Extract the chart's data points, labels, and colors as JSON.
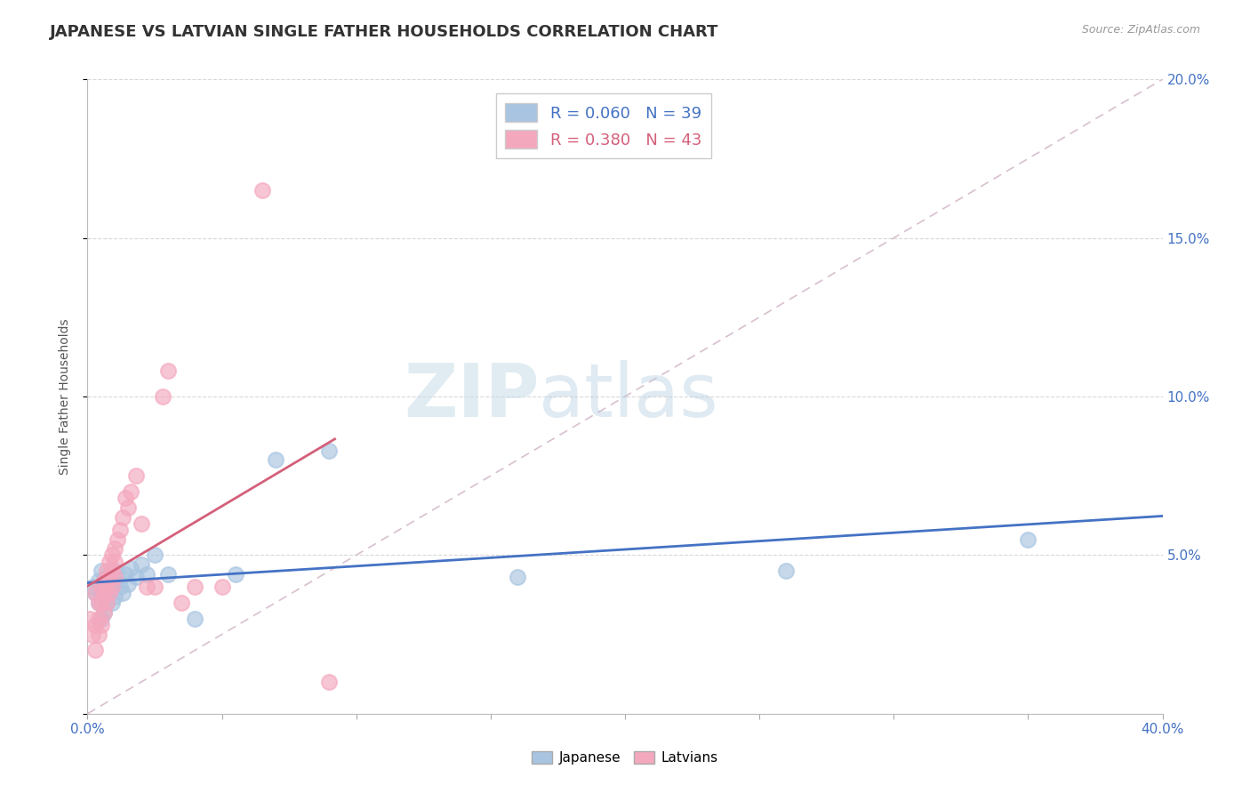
{
  "title": "JAPANESE VS LATVIAN SINGLE FATHER HOUSEHOLDS CORRELATION CHART",
  "source_text": "Source: ZipAtlas.com",
  "ylabel": "Single Father Households",
  "xlim": [
    0.0,
    0.4
  ],
  "ylim": [
    0.0,
    0.2
  ],
  "xtick_positions": [
    0.0,
    0.05,
    0.1,
    0.15,
    0.2,
    0.25,
    0.3,
    0.35,
    0.4
  ],
  "xtick_labels": [
    "0.0%",
    "",
    "",
    "",
    "",
    "",
    "",
    "",
    "40.0%"
  ],
  "ytick_positions": [
    0.0,
    0.05,
    0.1,
    0.15,
    0.2
  ],
  "ytick_labels_right": [
    "",
    "5.0%",
    "10.0%",
    "15.0%",
    "20.0%"
  ],
  "watermark_zip": "ZIP",
  "watermark_atlas": "atlas",
  "legend_japanese_R": "R = 0.060",
  "legend_japanese_N": "N = 39",
  "legend_latvian_R": "R = 0.380",
  "legend_latvian_N": "N = 43",
  "japanese_color": "#a8c4e0",
  "latvian_color": "#f4a8be",
  "japanese_line_color": "#4472c4",
  "latvian_line_color": "#d4607a",
  "diagonal_line_color": "#d8c0d0",
  "title_fontsize": 13,
  "axis_label_fontsize": 10,
  "tick_fontsize": 11,
  "background_color": "#ffffff",
  "grid_color": "#d8d8d8",
  "japanese_x": [
    0.002,
    0.003,
    0.004,
    0.004,
    0.005,
    0.005,
    0.005,
    0.006,
    0.006,
    0.006,
    0.007,
    0.007,
    0.007,
    0.008,
    0.008,
    0.009,
    0.009,
    0.009,
    0.01,
    0.01,
    0.01,
    0.011,
    0.012,
    0.013,
    0.014,
    0.015,
    0.016,
    0.018,
    0.02,
    0.022,
    0.025,
    0.03,
    0.04,
    0.055,
    0.07,
    0.09,
    0.16,
    0.26,
    0.35
  ],
  "japanese_y": [
    0.04,
    0.038,
    0.042,
    0.035,
    0.045,
    0.038,
    0.03,
    0.042,
    0.038,
    0.032,
    0.043,
    0.04,
    0.035,
    0.044,
    0.038,
    0.042,
    0.04,
    0.035,
    0.045,
    0.042,
    0.037,
    0.043,
    0.04,
    0.038,
    0.044,
    0.041,
    0.046,
    0.043,
    0.047,
    0.044,
    0.05,
    0.044,
    0.03,
    0.044,
    0.08,
    0.083,
    0.043,
    0.045,
    0.055
  ],
  "latvian_x": [
    0.001,
    0.002,
    0.003,
    0.003,
    0.003,
    0.004,
    0.004,
    0.004,
    0.005,
    0.005,
    0.005,
    0.006,
    0.006,
    0.006,
    0.007,
    0.007,
    0.007,
    0.008,
    0.008,
    0.008,
    0.009,
    0.009,
    0.009,
    0.01,
    0.01,
    0.01,
    0.011,
    0.012,
    0.013,
    0.014,
    0.015,
    0.016,
    0.018,
    0.02,
    0.022,
    0.025,
    0.028,
    0.03,
    0.035,
    0.04,
    0.05,
    0.065,
    0.09
  ],
  "latvian_y": [
    0.03,
    0.025,
    0.038,
    0.028,
    0.02,
    0.035,
    0.03,
    0.025,
    0.04,
    0.035,
    0.028,
    0.042,
    0.038,
    0.032,
    0.045,
    0.04,
    0.035,
    0.048,
    0.043,
    0.038,
    0.05,
    0.045,
    0.04,
    0.052,
    0.048,
    0.043,
    0.055,
    0.058,
    0.062,
    0.068,
    0.065,
    0.07,
    0.075,
    0.06,
    0.04,
    0.04,
    0.1,
    0.108,
    0.035,
    0.04,
    0.04,
    0.165,
    0.01
  ]
}
